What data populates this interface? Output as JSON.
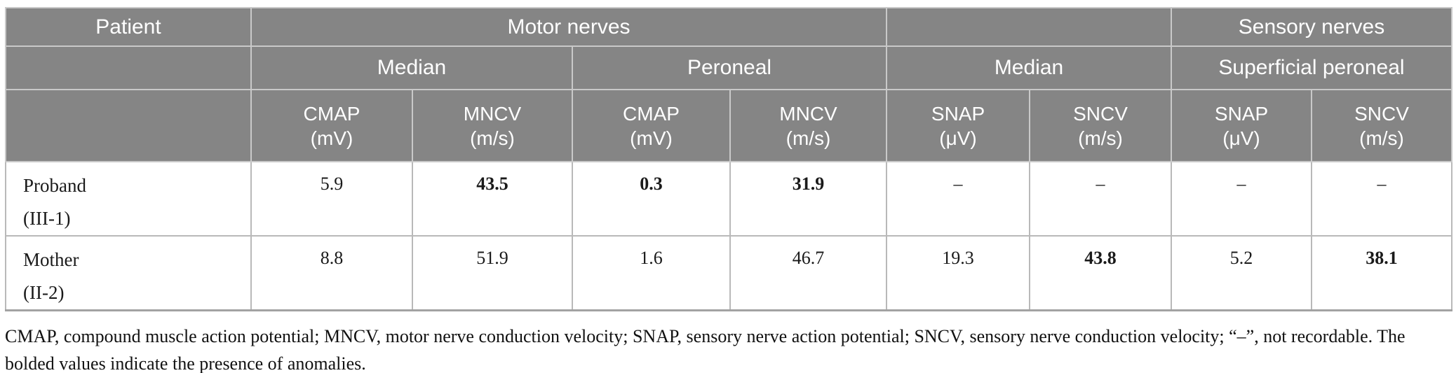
{
  "colors": {
    "header_bg": "#858585",
    "header_text": "#ffffff",
    "header_border": "#c9c9c9",
    "body_border": "#b9b9b9",
    "bottom_border": "#a2a2a2",
    "data_text": "#1a1a1a"
  },
  "table": {
    "header": {
      "row1": {
        "patient": "Patient",
        "motor": "Motor nerves",
        "blank": "",
        "sensory": "Sensory nerves"
      },
      "row2": {
        "blank": "",
        "median_motor": "Median",
        "peroneal": "Peroneal",
        "median_sensory": "Median",
        "superficial_peroneal": "Superficial peroneal"
      },
      "row3": [
        {
          "label": "CMAP",
          "unit": "(mV)"
        },
        {
          "label": "MNCV",
          "unit": "(m/s)"
        },
        {
          "label": "CMAP",
          "unit": "(mV)"
        },
        {
          "label": "MNCV",
          "unit": "(m/s)"
        },
        {
          "label": "SNAP",
          "unit": "(μV)"
        },
        {
          "label": "SNCV",
          "unit": "(m/s)"
        },
        {
          "label": "SNAP",
          "unit": "(μV)"
        },
        {
          "label": "SNCV",
          "unit": "(m/s)"
        }
      ]
    },
    "rows": [
      {
        "patient_lines": [
          "Proband",
          "(III-1)"
        ],
        "cells": [
          {
            "value": "5.9",
            "bold": false
          },
          {
            "value": "43.5",
            "bold": true
          },
          {
            "value": "0.3",
            "bold": true
          },
          {
            "value": "31.9",
            "bold": true
          },
          {
            "value": "–",
            "bold": false
          },
          {
            "value": "–",
            "bold": false
          },
          {
            "value": "–",
            "bold": false
          },
          {
            "value": "–",
            "bold": false
          }
        ]
      },
      {
        "patient_lines": [
          "Mother",
          "(II-2)"
        ],
        "cells": [
          {
            "value": "8.8",
            "bold": false
          },
          {
            "value": "51.9",
            "bold": false
          },
          {
            "value": "1.6",
            "bold": false
          },
          {
            "value": "46.7",
            "bold": false
          },
          {
            "value": "19.3",
            "bold": false
          },
          {
            "value": "43.8",
            "bold": true
          },
          {
            "value": "5.2",
            "bold": false
          },
          {
            "value": "38.1",
            "bold": true
          }
        ]
      }
    ],
    "footnote_lines": [
      "CMAP, compound muscle action potential; MNCV, motor nerve conduction velocity; SNAP, sensory nerve action potential; SNCV, sensory nerve conduction velocity; “–”, not recordable. The",
      "bolded values indicate the presence of anomalies."
    ]
  }
}
